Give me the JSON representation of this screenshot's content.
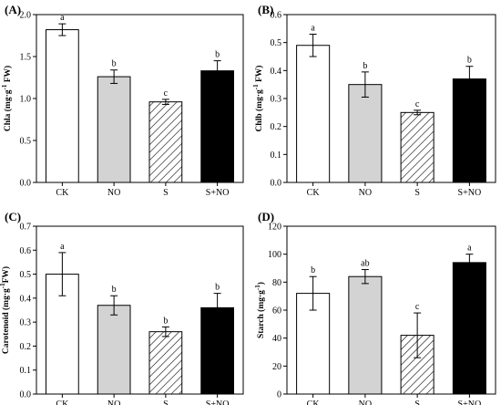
{
  "chart_data": [
    {
      "panel": "(A)",
      "type": "bar",
      "ylabel_main": "Chla (mg·g",
      "ylabel_sup": "-1",
      "ylabel_tail": " FW)",
      "categories": [
        "CK",
        "NO",
        "S",
        "S+NO"
      ],
      "values": [
        1.82,
        1.26,
        0.96,
        1.33
      ],
      "errors": [
        0.07,
        0.08,
        0.03,
        0.12
      ],
      "labels": [
        "a",
        "b",
        "c",
        "b"
      ],
      "ylim": [
        0,
        2.0
      ],
      "yticks": [
        0.0,
        0.5,
        1.0,
        1.5,
        2.0
      ],
      "ytick_labels": [
        "0.0",
        "0.5",
        "1.0",
        "1.5",
        "2.0"
      ],
      "fills": [
        "white",
        "grey",
        "hatch",
        "black"
      ]
    },
    {
      "panel": "(B)",
      "type": "bar",
      "ylabel_main": "Chlb (mg·g",
      "ylabel_sup": "-1",
      "ylabel_tail": " FW)",
      "categories": [
        "CK",
        "NO",
        "S",
        "S+NO"
      ],
      "values": [
        0.49,
        0.35,
        0.25,
        0.37
      ],
      "errors": [
        0.04,
        0.045,
        0.008,
        0.045
      ],
      "labels": [
        "a",
        "b",
        "c",
        "b"
      ],
      "ylim": [
        0,
        0.6
      ],
      "yticks": [
        0.0,
        0.1,
        0.2,
        0.3,
        0.4,
        0.5,
        0.6
      ],
      "ytick_labels": [
        "0.0",
        "0.1",
        "0.2",
        "0.3",
        "0.4",
        "0.5",
        "0.6"
      ],
      "fills": [
        "white",
        "grey",
        "hatch",
        "black"
      ]
    },
    {
      "panel": "(C)",
      "type": "bar",
      "ylabel_main": "Carotenoid (mg·g",
      "ylabel_sup": "-1",
      "ylabel_tail": "FW)",
      "categories": [
        "CK",
        "NO",
        "S",
        "S+NO"
      ],
      "values": [
        0.5,
        0.37,
        0.26,
        0.36
      ],
      "errors": [
        0.09,
        0.04,
        0.02,
        0.06
      ],
      "labels": [
        "a",
        "b",
        "b",
        "b"
      ],
      "ylim": [
        0,
        0.7
      ],
      "yticks": [
        0.0,
        0.1,
        0.2,
        0.3,
        0.4,
        0.5,
        0.6,
        0.7
      ],
      "ytick_labels": [
        "0.0",
        "0.1",
        "0.2",
        "0.3",
        "0.4",
        "0.5",
        "0.6",
        "0.7"
      ],
      "fills": [
        "white",
        "grey",
        "hatch",
        "black"
      ]
    },
    {
      "panel": "(D)",
      "type": "bar",
      "ylabel_main": "Starch (mg·g",
      "ylabel_sup": "-1",
      "ylabel_tail": ")",
      "categories": [
        "CK",
        "NO",
        "S",
        "S+NO"
      ],
      "values": [
        72,
        84,
        42,
        94
      ],
      "errors": [
        12,
        5,
        16,
        6
      ],
      "labels": [
        "b",
        "ab",
        "c",
        "a"
      ],
      "ylim": [
        0,
        120
      ],
      "yticks": [
        0,
        20,
        40,
        60,
        80,
        100,
        120
      ],
      "ytick_labels": [
        "0",
        "20",
        "40",
        "60",
        "80",
        "100",
        "120"
      ],
      "fills": [
        "white",
        "grey",
        "hatch",
        "black"
      ]
    }
  ],
  "colors": {
    "white": "#ffffff",
    "grey": "#d3d3d3",
    "black": "#000000",
    "axis": "#000000"
  }
}
